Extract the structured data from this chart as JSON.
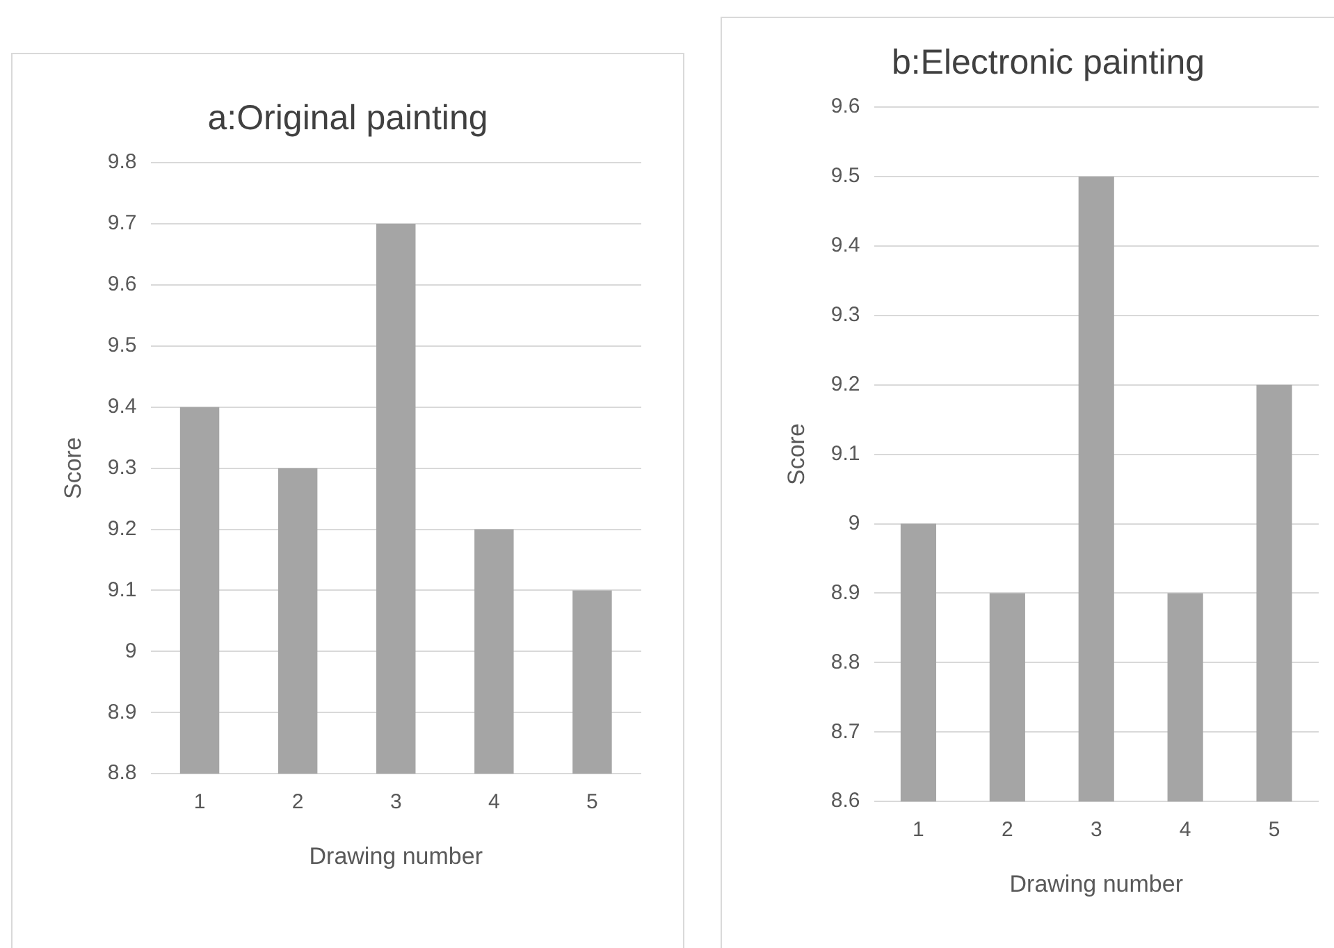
{
  "chart_data": [
    {
      "type": "bar",
      "title": "a:Original painting",
      "xlabel": "Drawing number",
      "ylabel": "Score",
      "categories": [
        "1",
        "2",
        "3",
        "4",
        "5"
      ],
      "values": [
        9.4,
        9.3,
        9.7,
        9.2,
        9.1
      ],
      "color": "#a5a5a5",
      "ylim": [
        8.8,
        9.8
      ],
      "yticks": [
        8.8,
        8.9,
        9,
        9.1,
        9.2,
        9.3,
        9.4,
        9.5,
        9.6,
        9.7,
        9.8
      ],
      "grid": "y"
    },
    {
      "type": "bar",
      "title": "b:Electronic painting",
      "xlabel": "Drawing number",
      "ylabel": "Score",
      "categories": [
        "1",
        "2",
        "3",
        "4",
        "5"
      ],
      "values": [
        9.0,
        8.9,
        9.5,
        8.9,
        9.2
      ],
      "color": "#a5a5a5",
      "ylim": [
        8.6,
        9.6
      ],
      "yticks": [
        8.6,
        8.7,
        8.8,
        8.9,
        9,
        9.1,
        9.2,
        9.3,
        9.4,
        9.5,
        9.6
      ],
      "grid": "y"
    }
  ]
}
